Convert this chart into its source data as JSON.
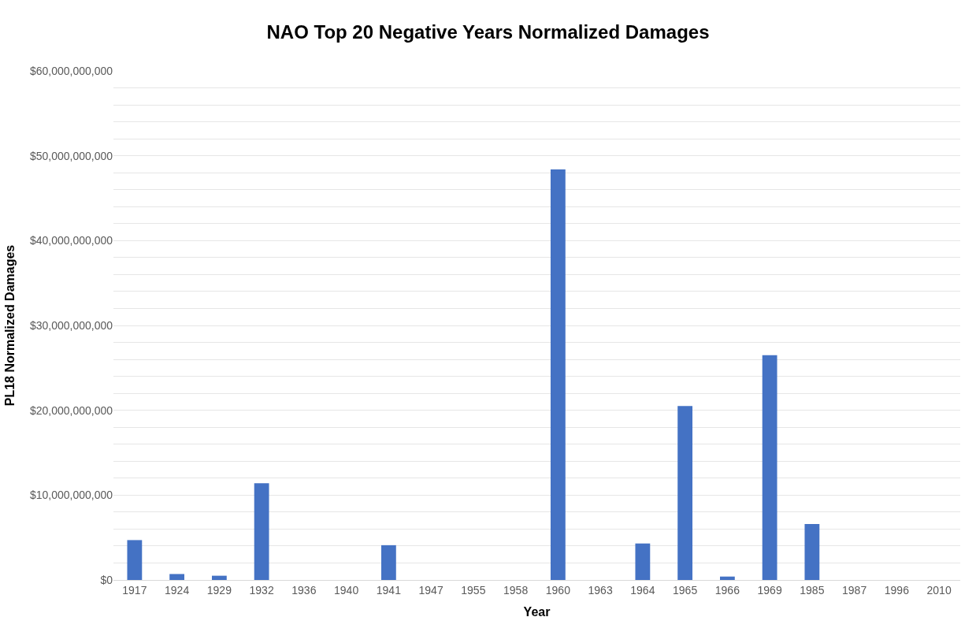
{
  "chart_data": {
    "type": "bar",
    "title": "NAO Top 20 Negative Years Normalized Damages",
    "xlabel": "Year",
    "ylabel": "PL18 Normalized Damages",
    "categories": [
      "1917",
      "1924",
      "1929",
      "1932",
      "1936",
      "1940",
      "1941",
      "1947",
      "1955",
      "1958",
      "1960",
      "1963",
      "1964",
      "1965",
      "1966",
      "1969",
      "1985",
      "1987",
      "1996",
      "2010"
    ],
    "values": [
      4700000000,
      700000000,
      500000000,
      11400000000,
      0,
      0,
      4100000000,
      0,
      0,
      0,
      48400000000,
      0,
      4300000000,
      20500000000,
      400000000,
      26500000000,
      6600000000,
      0,
      0,
      0
    ],
    "color": "#4472c4",
    "ylim": [
      0,
      60000000000
    ],
    "yticks": [
      {
        "value": 0,
        "label": "$0"
      },
      {
        "value": 2000000000,
        "label": null
      },
      {
        "value": 4000000000,
        "label": null
      },
      {
        "value": 6000000000,
        "label": null
      },
      {
        "value": 8000000000,
        "label": null
      },
      {
        "value": 10000000000,
        "label": "$10,000,000,000"
      },
      {
        "value": 12000000000,
        "label": null
      },
      {
        "value": 14000000000,
        "label": null
      },
      {
        "value": 16000000000,
        "label": null
      },
      {
        "value": 18000000000,
        "label": null
      },
      {
        "value": 20000000000,
        "label": "$20,000,000,000"
      },
      {
        "value": 22000000000,
        "label": null
      },
      {
        "value": 24000000000,
        "label": null
      },
      {
        "value": 26000000000,
        "label": null
      },
      {
        "value": 28000000000,
        "label": null
      },
      {
        "value": 30000000000,
        "label": "$30,000,000,000"
      },
      {
        "value": 32000000000,
        "label": null
      },
      {
        "value": 34000000000,
        "label": null
      },
      {
        "value": 36000000000,
        "label": null
      },
      {
        "value": 38000000000,
        "label": null
      },
      {
        "value": 40000000000,
        "label": "$40,000,000,000"
      },
      {
        "value": 42000000000,
        "label": null
      },
      {
        "value": 44000000000,
        "label": null
      },
      {
        "value": 46000000000,
        "label": null
      },
      {
        "value": 48000000000,
        "label": null
      },
      {
        "value": 50000000000,
        "label": "$50,000,000,000"
      },
      {
        "value": 52000000000,
        "label": null
      },
      {
        "value": 54000000000,
        "label": null
      },
      {
        "value": 56000000000,
        "label": null
      },
      {
        "value": 58000000000,
        "label": null
      },
      {
        "value": 60000000000,
        "label": "$60,000,000,000"
      }
    ],
    "grid": "y"
  }
}
